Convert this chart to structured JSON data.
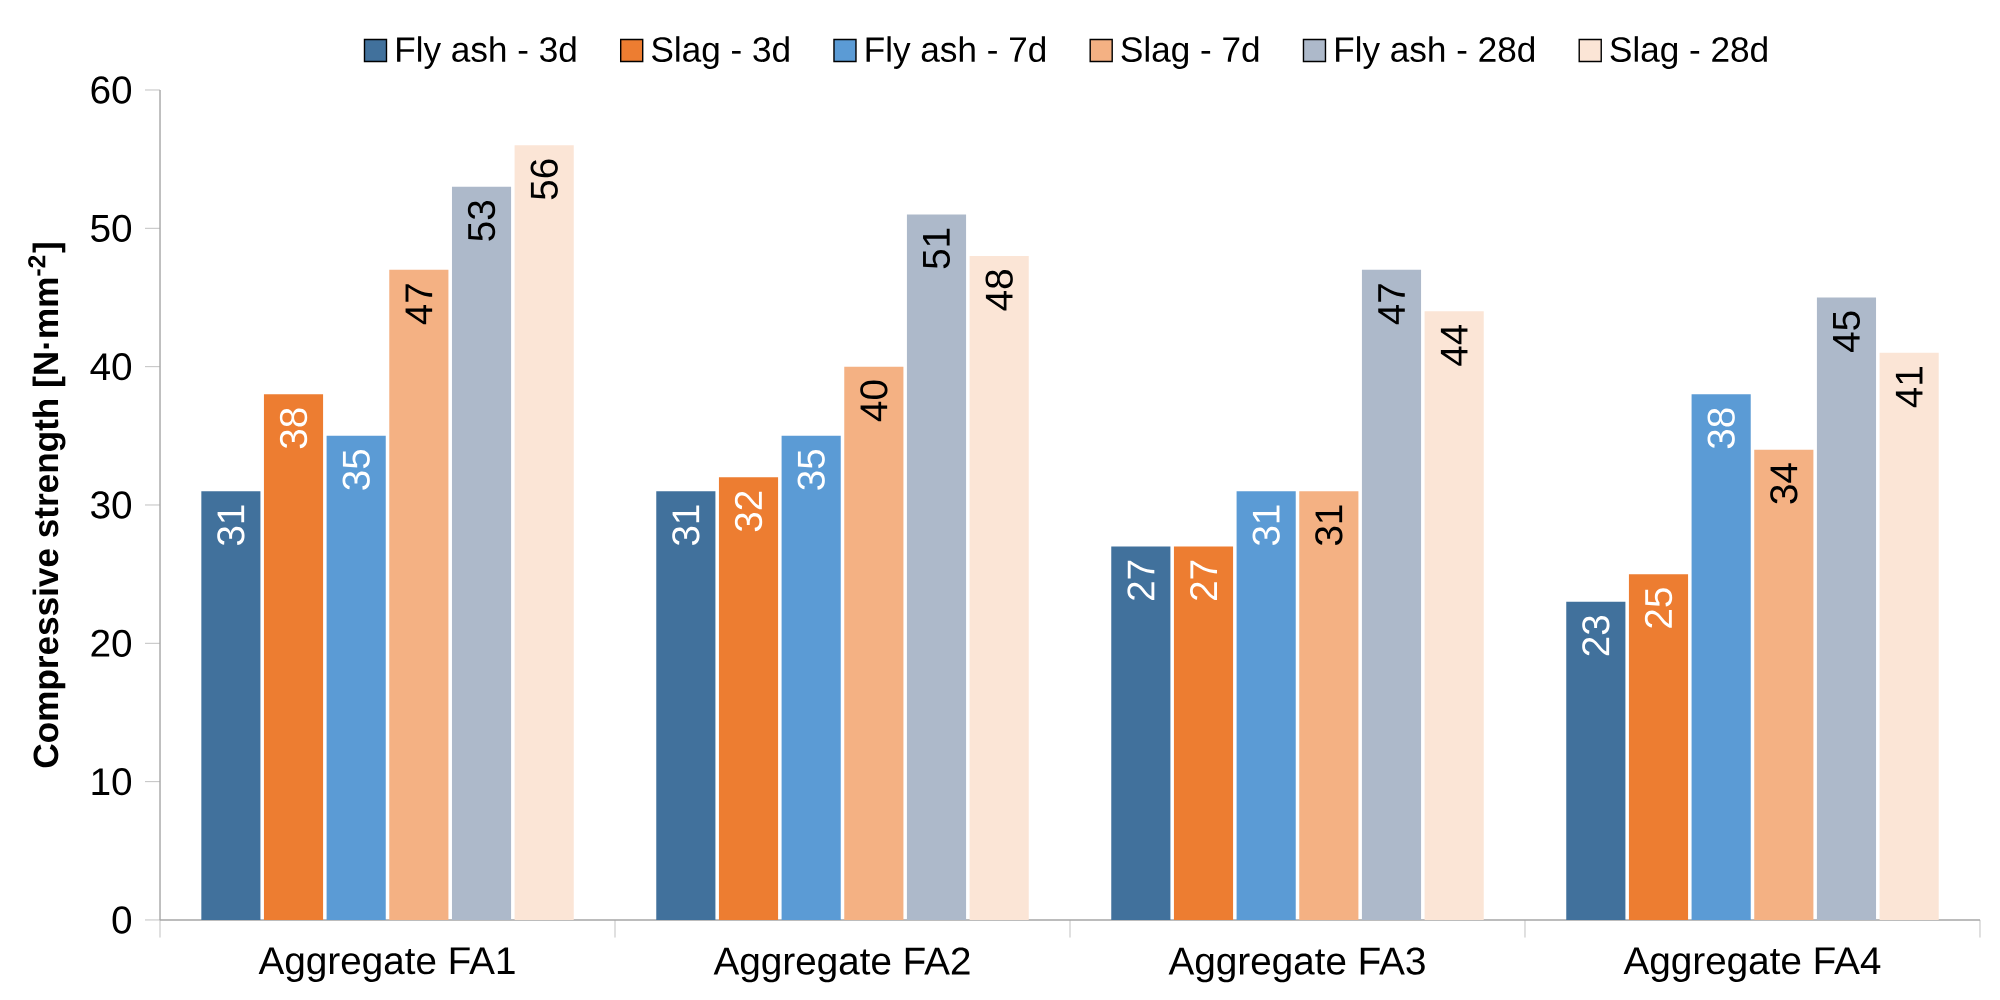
{
  "chart_data": {
    "type": "bar",
    "ylabel": "Compressive strength [N·mm$^{-2}$]",
    "categories": [
      "Aggregate FA1",
      "Aggregate FA2",
      "Aggregate FA3",
      "Aggregate FA4"
    ],
    "series": [
      {
        "name": "Fly ash - 3d",
        "color": "#41719c",
        "values": [
          31,
          31,
          27,
          23
        ]
      },
      {
        "name": "Slag - 3d",
        "color": "#ed7d31",
        "values": [
          38,
          32,
          27,
          25
        ]
      },
      {
        "name": "Fly ash - 7d",
        "color": "#5b9bd5",
        "values": [
          35,
          35,
          31,
          38
        ]
      },
      {
        "name": "Slag - 7d",
        "color": "#f4b183",
        "values": [
          47,
          40,
          31,
          34
        ]
      },
      {
        "name": "Fly ash - 28d",
        "color": "#adb9ca",
        "values": [
          53,
          51,
          47,
          45
        ]
      },
      {
        "name": "Slag - 28d",
        "color": "#fbe5d6",
        "values": [
          56,
          48,
          44,
          41
        ]
      }
    ],
    "ylim": [
      0,
      60
    ],
    "yticks": [
      0,
      10,
      20,
      30,
      40,
      50,
      60
    ],
    "data_labels": true,
    "grid": false,
    "legend": "top"
  }
}
